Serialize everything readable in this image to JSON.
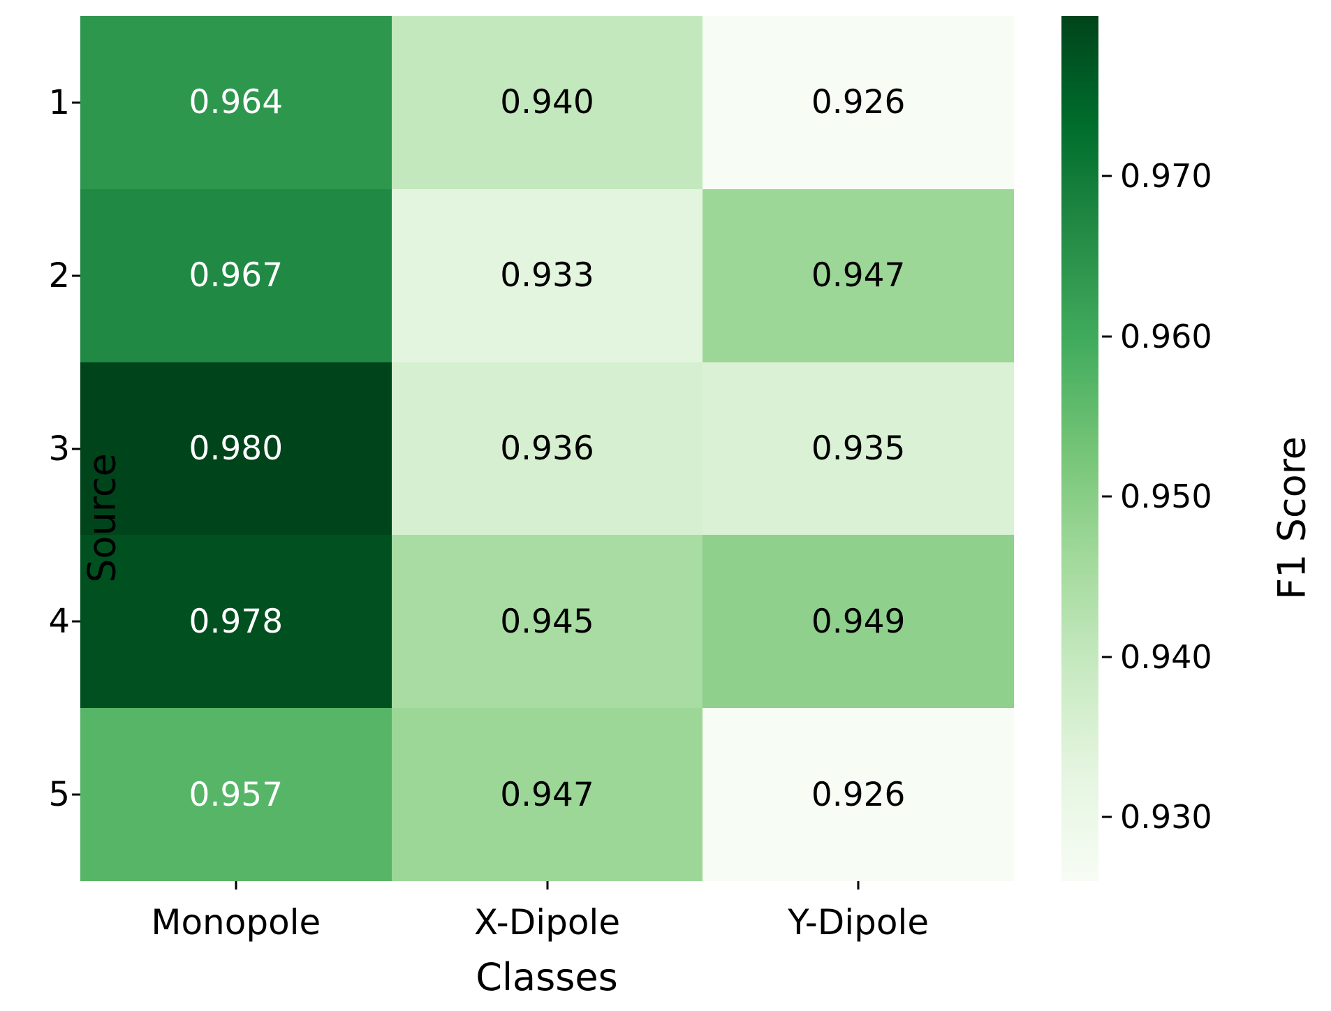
{
  "chart_data": {
    "type": "heatmap",
    "title": "",
    "xlabel": "Classes",
    "ylabel": "Source",
    "categories_x": [
      "Monopole",
      "X-Dipole",
      "Y-Dipole"
    ],
    "categories_y": [
      "1",
      "2",
      "3",
      "4",
      "5"
    ],
    "values": [
      [
        0.964,
        0.94,
        0.926
      ],
      [
        0.967,
        0.933,
        0.947
      ],
      [
        0.98,
        0.936,
        0.935
      ],
      [
        0.978,
        0.945,
        0.949
      ],
      [
        0.957,
        0.947,
        0.926
      ]
    ],
    "value_format_decimals": 3,
    "vmin": 0.926,
    "vmax": 0.98,
    "colormap": "Greens",
    "colormap_stops": [
      "#f7fcf5",
      "#e5f5e0",
      "#c7e9c0",
      "#a1d99b",
      "#74c476",
      "#41ab5d",
      "#238b45",
      "#006d2c",
      "#00441b"
    ],
    "cell_text_dark": "#000000",
    "cell_text_light": "#ffffff",
    "grid": false,
    "colorbar": {
      "label": "F1 Score",
      "ticks": [
        0.97,
        0.96,
        0.95,
        0.94,
        0.93
      ],
      "range": [
        0.926,
        0.98
      ],
      "position": "right"
    }
  }
}
